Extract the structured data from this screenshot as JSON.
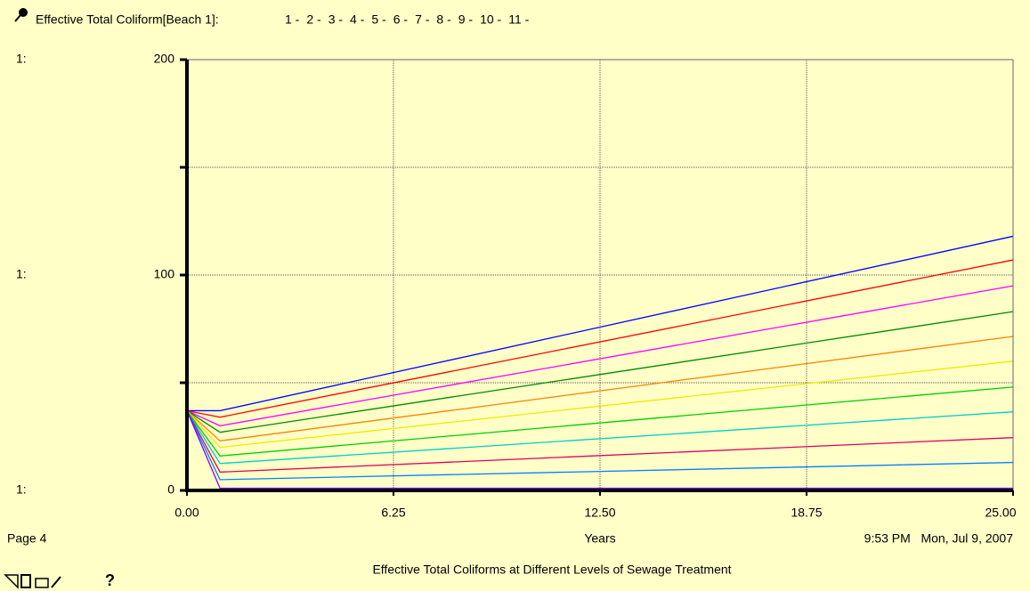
{
  "chart_data": {
    "type": "line",
    "legend_title": "Effective Total Coliform[Beach 1]:",
    "scale_prefix": "1:",
    "page": "Page 4",
    "xlabel": "Years",
    "timestamp": "9:53 PM   Mon, Jul 9, 2007",
    "title": "Effective Total Coliforms at Different Levels of Sewage Treatment",
    "help": "?",
    "x": [
      0,
      1,
      25
    ],
    "xlim": [
      0,
      25
    ],
    "xticks": [
      {
        "value": 0,
        "label": "0.00"
      },
      6.25,
      {
        "value": 12.5,
        "label": "12.50"
      },
      18.75,
      {
        "value": 25,
        "label": "25.00"
      }
    ],
    "ylim": [
      0,
      200
    ],
    "yticks": [
      0,
      100,
      200
    ],
    "yminor": [
      50,
      150
    ],
    "grid": true,
    "series": [
      {
        "name": "1 -",
        "color": "#0000ff",
        "values": [
          37,
          37,
          118
        ]
      },
      {
        "name": "2 -",
        "color": "#ff0000",
        "values": [
          37,
          34,
          107
        ]
      },
      {
        "name": "3 -",
        "color": "#ff00ff",
        "values": [
          37,
          30,
          95
        ]
      },
      {
        "name": "4 -",
        "color": "#008800",
        "values": [
          37,
          27,
          83
        ]
      },
      {
        "name": "5 -",
        "color": "#ff8000",
        "values": [
          37,
          23,
          71.5
        ]
      },
      {
        "name": "6 -",
        "color": "#f0e800",
        "values": [
          37,
          20,
          60
        ]
      },
      {
        "name": "7 -",
        "color": "#00cc00",
        "values": [
          37,
          16,
          48
        ]
      },
      {
        "name": "8 -",
        "color": "#00cccc",
        "values": [
          37,
          12.5,
          36.5
        ]
      },
      {
        "name": "9 -",
        "color": "#e00060",
        "values": [
          37,
          8.5,
          24.5
        ]
      },
      {
        "name": "10 -",
        "color": "#0080ff",
        "values": [
          37,
          5,
          13
        ]
      },
      {
        "name": "11 -",
        "color": "#8000ff",
        "values": [
          37,
          1,
          1
        ]
      }
    ]
  }
}
